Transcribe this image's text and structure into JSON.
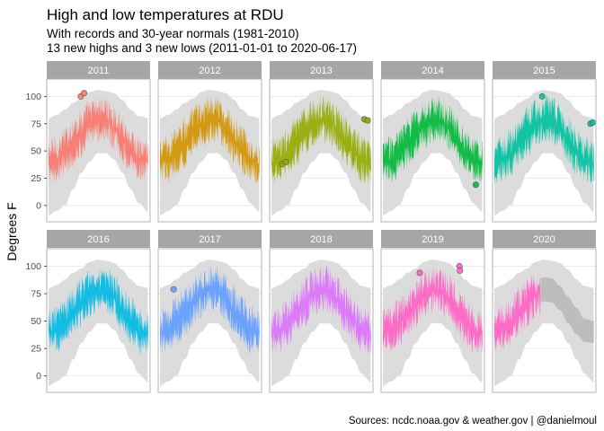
{
  "chart_data": {
    "type": "area",
    "title": "High and low temperatures at RDU",
    "subtitle_lines": [
      "With records and 30-year normals (1981-2010)",
      "13 new highs and 3 new lows (2011-01-01 to 2020-06-17)"
    ],
    "caption": "Sources: ncdc.noaa.gov & weather.gov | @danielmoul",
    "ylabel": "Degrees F",
    "xlabel": "",
    "ylim": [
      -15,
      116
    ],
    "y_ticks": [
      0,
      25,
      50,
      75,
      100
    ],
    "grid": true,
    "legend": "none",
    "colors": {
      "record_band": "#dcdcdc",
      "normal_band": "#bdbdbd",
      "strip_bg": "#a6a6a6",
      "panel_border": "#b3b3b3",
      "gridline": "#ebebeb"
    },
    "panels": [
      {
        "year": "2011",
        "color": "#F8766D",
        "records": [
          {
            "day": 118,
            "temp": 100
          },
          {
            "day": 130,
            "temp": 103
          }
        ]
      },
      {
        "year": "2012",
        "color": "#D39200",
        "records": []
      },
      {
        "year": "2013",
        "color": "#93AA00",
        "records": [
          {
            "day": 40,
            "temp": 38
          },
          {
            "day": 52,
            "temp": 40
          },
          {
            "day": 340,
            "temp": 79
          },
          {
            "day": 352,
            "temp": 78
          }
        ]
      },
      {
        "year": "2014",
        "color": "#00BA38",
        "records": [
          {
            "day": 340,
            "temp": 19
          }
        ]
      },
      {
        "year": "2015",
        "color": "#00C19F",
        "records": [
          {
            "day": 175,
            "temp": 100
          },
          {
            "day": 352,
            "temp": 75
          },
          {
            "day": 360,
            "temp": 76
          }
        ]
      },
      {
        "year": "2016",
        "color": "#00B9E3",
        "records": []
      },
      {
        "year": "2017",
        "color": "#619CFF",
        "records": [
          {
            "day": 50,
            "temp": 79
          }
        ]
      },
      {
        "year": "2018",
        "color": "#DB72FB",
        "records": []
      },
      {
        "year": "2019",
        "color": "#FF61C3",
        "records": [
          {
            "day": 135,
            "temp": 94
          },
          {
            "day": 280,
            "temp": 100
          },
          {
            "day": 282,
            "temp": 96
          }
        ]
      },
      {
        "year": "2020",
        "color": "#FF61C3",
        "records": [],
        "partial_days": 169
      }
    ],
    "climate_profile": {
      "days": [
        0,
        30,
        60,
        90,
        120,
        150,
        180,
        210,
        240,
        270,
        300,
        330,
        365
      ],
      "record_low": [
        -9,
        -5,
        0,
        15,
        30,
        40,
        48,
        48,
        42,
        30,
        15,
        2,
        -6
      ],
      "record_high": [
        80,
        83,
        88,
        94,
        98,
        104,
        106,
        105,
        103,
        97,
        88,
        82,
        80
      ],
      "normal_low": [
        30,
        31,
        37,
        45,
        54,
        63,
        68,
        67,
        60,
        48,
        38,
        31,
        30
      ],
      "normal_high": [
        50,
        53,
        61,
        71,
        79,
        86,
        90,
        89,
        82,
        72,
        62,
        52,
        50
      ]
    }
  }
}
